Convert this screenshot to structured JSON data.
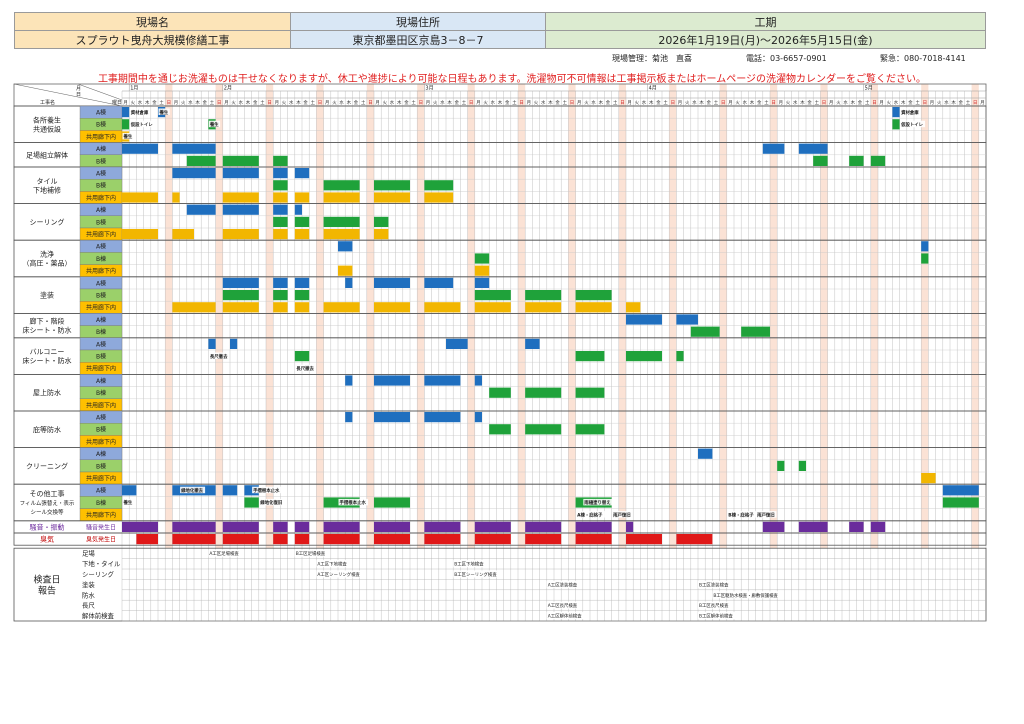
{
  "header": {
    "site_name_label": "現場名",
    "site_name": "スプラウト曳舟大規模修繕工事",
    "address_label": "現場住所",
    "address": "東京都墨田区京島3－8－7",
    "period_label": "工期",
    "period": "2026年1月19日(月)～2026年5月15日(金)"
  },
  "info": {
    "manager": "現場管理：菊池　直喜",
    "phone": "電話：03-6657-0901",
    "emergency": "緊急：080-7018-4141"
  },
  "notice": "工事期間中を通じお洗濯ものは干せなくなりますが、休工や進捗により可能な日程もあります。洗濯物可不可情報は工事掲示板またはホームページの洗濯物カレンダーをご覧ください。",
  "corner": {
    "top": "月",
    "mid": "日",
    "bottom": "曜日",
    "left": "工事名"
  },
  "months": [
    {
      "label": "1月",
      "day": 1
    },
    {
      "label": "2月",
      "day": 14
    },
    {
      "label": "3月",
      "day": 42
    },
    {
      "label": "4月",
      "day": 73
    },
    {
      "label": "5月",
      "day": 103
    }
  ],
  "weekday_chars": [
    "月",
    "火",
    "水",
    "木",
    "金",
    "土",
    "日"
  ],
  "colors": {
    "a_bldg": "#1f6fbf",
    "b_bldg": "#1fa23a",
    "common": "#f2b600",
    "noise": "#6a2c9c",
    "odor": "#e01818",
    "label_a": "#8ea9db",
    "label_b": "#9bd06a",
    "label_common": "#ffc000",
    "sunday_col": "#fbe2d5",
    "noise_label": "#7030a0",
    "odor_label": "#c00000"
  },
  "sections": [
    {
      "name": "各所養生\n共通仮設",
      "rows": [
        "A棟",
        "B棟",
        "共用廊下内"
      ],
      "bars": [
        [
          0,
          0,
          1,
          "a"
        ],
        [
          0,
          5,
          6,
          "a"
        ],
        [
          1,
          0,
          1,
          "b"
        ],
        [
          1,
          12,
          13,
          "b"
        ],
        [
          2,
          0,
          1,
          "c"
        ],
        [
          0,
          107,
          108,
          "a"
        ],
        [
          1,
          107,
          108,
          "b"
        ]
      ],
      "notes": [
        [
          0,
          1,
          "資材倉庫"
        ],
        [
          1,
          1,
          "仮設トイレ"
        ],
        [
          0,
          5,
          "養生"
        ],
        [
          1,
          12,
          "養生"
        ],
        [
          2,
          0,
          "養生"
        ],
        [
          0,
          108,
          "資材倉庫"
        ],
        [
          1,
          108,
          "仮設トイレ"
        ]
      ]
    },
    {
      "name": "足場組立解体",
      "rows": [
        "A棟",
        "B棟"
      ],
      "bars": [
        [
          0,
          0,
          5,
          "a"
        ],
        [
          0,
          7,
          13,
          "a"
        ],
        [
          1,
          9,
          13,
          "b"
        ],
        [
          1,
          14,
          19,
          "b"
        ],
        [
          1,
          21,
          23,
          "b"
        ],
        [
          0,
          89,
          92,
          "a"
        ],
        [
          0,
          94,
          98,
          "a"
        ],
        [
          1,
          96,
          98,
          "b"
        ],
        [
          1,
          101,
          103,
          "b"
        ],
        [
          1,
          104,
          106,
          "b"
        ]
      ],
      "notes": []
    },
    {
      "name": "タイル\n下地補修",
      "rows": [
        "A棟",
        "B棟",
        "共用廊下内"
      ],
      "bars": [
        [
          0,
          7,
          13,
          "a"
        ],
        [
          0,
          14,
          19,
          "a"
        ],
        [
          0,
          21,
          23,
          "a"
        ],
        [
          0,
          24,
          26,
          "a"
        ],
        [
          1,
          21,
          23,
          "b"
        ],
        [
          1,
          28,
          33,
          "b"
        ],
        [
          1,
          35,
          40,
          "b"
        ],
        [
          1,
          42,
          46,
          "b"
        ],
        [
          2,
          0,
          5,
          "c"
        ],
        [
          2,
          7,
          8,
          "c"
        ],
        [
          2,
          14,
          19,
          "c"
        ],
        [
          2,
          21,
          23,
          "c"
        ],
        [
          2,
          24,
          26,
          "c"
        ],
        [
          2,
          28,
          33,
          "c"
        ],
        [
          2,
          35,
          40,
          "c"
        ],
        [
          2,
          42,
          46,
          "c"
        ]
      ],
      "notes": []
    },
    {
      "name": "シーリング",
      "rows": [
        "A棟",
        "B棟",
        "共用廊下内"
      ],
      "bars": [
        [
          0,
          9,
          13,
          "a"
        ],
        [
          0,
          14,
          19,
          "a"
        ],
        [
          0,
          21,
          23,
          "a"
        ],
        [
          0,
          24,
          25,
          "a"
        ],
        [
          1,
          21,
          23,
          "b"
        ],
        [
          1,
          24,
          26,
          "b"
        ],
        [
          1,
          28,
          33,
          "b"
        ],
        [
          1,
          35,
          37,
          "b"
        ],
        [
          2,
          0,
          5,
          "c"
        ],
        [
          2,
          7,
          10,
          "c"
        ],
        [
          2,
          14,
          19,
          "c"
        ],
        [
          2,
          21,
          23,
          "c"
        ],
        [
          2,
          24,
          26,
          "c"
        ],
        [
          2,
          28,
          33,
          "c"
        ],
        [
          2,
          35,
          37,
          "c"
        ]
      ],
      "notes": []
    },
    {
      "name": "洗浄\n（高圧・薬品）",
      "rows": [
        "A棟",
        "B棟",
        "共用廊下内"
      ],
      "bars": [
        [
          0,
          30,
          32,
          "a"
        ],
        [
          1,
          49,
          51,
          "b"
        ],
        [
          2,
          30,
          32,
          "c"
        ],
        [
          2,
          49,
          51,
          "c"
        ],
        [
          0,
          111,
          112,
          "a"
        ],
        [
          1,
          111,
          112,
          "b"
        ]
      ],
      "notes": []
    },
    {
      "name": "塗装",
      "rows": [
        "A棟",
        "B棟",
        "共用廊下内"
      ],
      "bars": [
        [
          0,
          14,
          19,
          "a"
        ],
        [
          0,
          21,
          23,
          "a"
        ],
        [
          0,
          24,
          26,
          "a"
        ],
        [
          0,
          31,
          32,
          "a"
        ],
        [
          0,
          35,
          40,
          "a"
        ],
        [
          0,
          42,
          46,
          "a"
        ],
        [
          0,
          49,
          51,
          "a"
        ],
        [
          1,
          14,
          19,
          "b"
        ],
        [
          1,
          21,
          23,
          "b"
        ],
        [
          1,
          24,
          26,
          "b"
        ],
        [
          1,
          49,
          54,
          "b"
        ],
        [
          1,
          56,
          61,
          "b"
        ],
        [
          1,
          63,
          68,
          "b"
        ],
        [
          2,
          7,
          13,
          "c"
        ],
        [
          2,
          14,
          19,
          "c"
        ],
        [
          2,
          21,
          23,
          "c"
        ],
        [
          2,
          24,
          26,
          "c"
        ],
        [
          2,
          28,
          33,
          "c"
        ],
        [
          2,
          35,
          40,
          "c"
        ],
        [
          2,
          42,
          47,
          "c"
        ],
        [
          2,
          49,
          54,
          "c"
        ],
        [
          2,
          56,
          61,
          "c"
        ],
        [
          2,
          63,
          68,
          "c"
        ],
        [
          2,
          70,
          72,
          "c"
        ]
      ],
      "notes": []
    },
    {
      "name": "廊下・階段\n床シート・防水",
      "rows": [
        "A棟",
        "B棟"
      ],
      "bars": [
        [
          0,
          70,
          75,
          "a"
        ],
        [
          0,
          77,
          80,
          "a"
        ],
        [
          1,
          79,
          83,
          "b"
        ],
        [
          1,
          86,
          90,
          "b"
        ]
      ],
      "notes": []
    },
    {
      "name": "バルコニー\n床シート・防水",
      "rows": [
        "A棟",
        "B棟",
        "共用廊下内"
      ],
      "bars": [
        [
          0,
          12,
          13,
          "a"
        ],
        [
          0,
          15,
          16,
          "a"
        ],
        [
          0,
          45,
          48,
          "a"
        ],
        [
          0,
          56,
          58,
          "a"
        ],
        [
          1,
          24,
          26,
          "b"
        ],
        [
          1,
          63,
          67,
          "b"
        ],
        [
          1,
          70,
          75,
          "b"
        ],
        [
          1,
          77,
          78,
          "b"
        ]
      ],
      "notes": [
        [
          1,
          12,
          "長尺撤去"
        ],
        [
          2,
          24,
          "長尺撤去"
        ]
      ]
    },
    {
      "name": "屋上防水",
      "rows": [
        "A棟",
        "B棟",
        "共用廊下内"
      ],
      "bars": [
        [
          0,
          31,
          32,
          "a"
        ],
        [
          0,
          35,
          40,
          "a"
        ],
        [
          0,
          42,
          47,
          "a"
        ],
        [
          0,
          49,
          50,
          "a"
        ],
        [
          1,
          51,
          54,
          "b"
        ],
        [
          1,
          56,
          61,
          "b"
        ],
        [
          1,
          63,
          67,
          "b"
        ]
      ],
      "notes": []
    },
    {
      "name": "庇等防水",
      "rows": [
        "A棟",
        "B棟",
        "共用廊下内"
      ],
      "bars": [
        [
          0,
          31,
          32,
          "a"
        ],
        [
          0,
          35,
          40,
          "a"
        ],
        [
          0,
          42,
          47,
          "a"
        ],
        [
          0,
          49,
          50,
          "a"
        ],
        [
          1,
          51,
          54,
          "b"
        ],
        [
          1,
          56,
          61,
          "b"
        ],
        [
          1,
          63,
          67,
          "b"
        ]
      ],
      "notes": []
    },
    {
      "name": "クリーニング",
      "rows": [
        "A棟",
        "B棟",
        "共用廊下内"
      ],
      "bars": [
        [
          0,
          80,
          82,
          "a"
        ],
        [
          1,
          91,
          92,
          "b"
        ],
        [
          1,
          94,
          95,
          "b"
        ],
        [
          2,
          111,
          113,
          "c"
        ]
      ],
      "notes": []
    },
    {
      "name": "その他工事\nフィルム張替え・表示\nシール交換等",
      "rows": [
        "A棟",
        "B棟",
        "共用廊下内"
      ],
      "bars": [
        [
          0,
          0,
          2,
          "a"
        ],
        [
          0,
          7,
          13,
          "a"
        ],
        [
          0,
          14,
          16,
          "a"
        ],
        [
          0,
          17,
          19,
          "a"
        ],
        [
          1,
          17,
          19,
          "b"
        ],
        [
          1,
          28,
          33,
          "b"
        ],
        [
          1,
          35,
          40,
          "b"
        ],
        [
          1,
          63,
          68,
          "b"
        ],
        [
          0,
          114,
          119,
          "a"
        ],
        [
          1,
          114,
          119,
          "b"
        ]
      ],
      "notes": [
        [
          1,
          0,
          "養生"
        ],
        [
          0,
          8,
          "緑地化撤去"
        ],
        [
          0,
          18,
          "手摺根本止水"
        ],
        [
          1,
          19,
          "緑地化復旧"
        ],
        [
          1,
          30,
          "手摺根本止水"
        ],
        [
          1,
          64,
          "雨樋塗り替え"
        ],
        [
          2,
          63,
          "A棟・庇格子"
        ],
        [
          2,
          68,
          "雨戸復旧"
        ],
        [
          2,
          84,
          "B棟・庇格子"
        ],
        [
          2,
          88,
          "雨戸復旧"
        ]
      ]
    }
  ],
  "noise": {
    "label": "騒音・振動",
    "row_label": "騒音発生日",
    "bars": [
      [
        0,
        5
      ],
      [
        7,
        13
      ],
      [
        14,
        19
      ],
      [
        21,
        23
      ],
      [
        24,
        26
      ],
      [
        28,
        33
      ],
      [
        35,
        40
      ],
      [
        42,
        47
      ],
      [
        49,
        54
      ],
      [
        56,
        61
      ],
      [
        63,
        68
      ],
      [
        70,
        71
      ],
      [
        89,
        92
      ],
      [
        94,
        98
      ],
      [
        101,
        103
      ],
      [
        104,
        106
      ]
    ]
  },
  "odor": {
    "label": "臭気",
    "row_label": "臭気発生日",
    "bars": [
      [
        2,
        5
      ],
      [
        7,
        13
      ],
      [
        14,
        19
      ],
      [
        21,
        23
      ],
      [
        24,
        26
      ],
      [
        28,
        33
      ],
      [
        35,
        40
      ],
      [
        42,
        47
      ],
      [
        49,
        54
      ],
      [
        56,
        61
      ],
      [
        63,
        68
      ],
      [
        70,
        75
      ],
      [
        77,
        82
      ]
    ]
  },
  "inspection": {
    "title": "検査日\n報告",
    "rows": [
      "足場",
      "下地・タイル",
      "シーリング",
      "塗装",
      "防水",
      "長尺",
      "解体前検査"
    ],
    "notes": [
      [
        0,
        12,
        "A工区足場検査"
      ],
      [
        0,
        24,
        "B工区足場検査"
      ],
      [
        1,
        27,
        "A工区下地検査"
      ],
      [
        1,
        46,
        "B工区下地検査"
      ],
      [
        2,
        27,
        "A工区シーリング検査"
      ],
      [
        2,
        46,
        "B工区シーリング検査"
      ],
      [
        3,
        59,
        "A工区塗装検査"
      ],
      [
        3,
        80,
        "B工区塗装検査"
      ],
      [
        4,
        82,
        "B工区躯防水検査・廊敷保護検査"
      ],
      [
        5,
        59,
        "A工区長尺検査"
      ],
      [
        5,
        80,
        "B工区長尺検査"
      ],
      [
        6,
        59,
        "A工区解体前検査"
      ],
      [
        6,
        80,
        "B工区解体前検査"
      ]
    ]
  }
}
